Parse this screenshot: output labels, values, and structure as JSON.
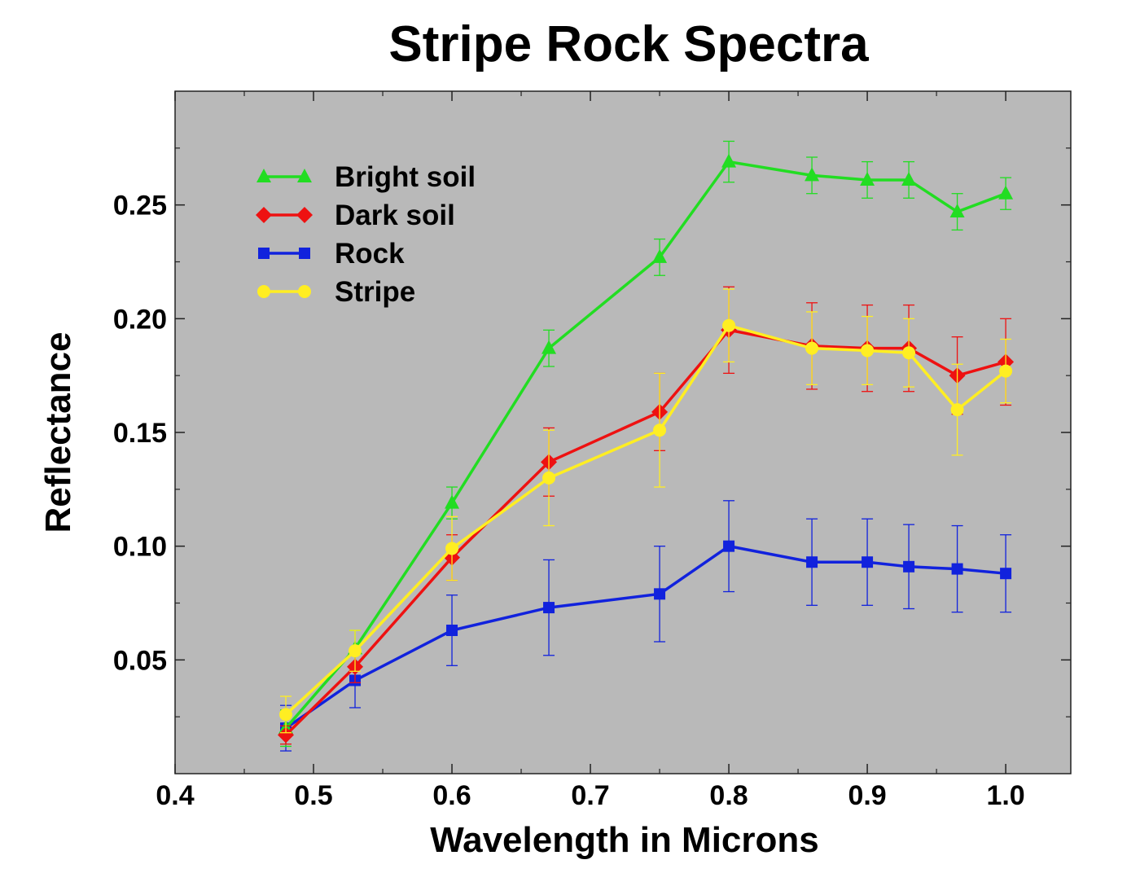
{
  "chart_data": {
    "type": "line",
    "title": "Stripe Rock Spectra",
    "xlabel": "Wavelength in Microns",
    "ylabel": "Reflectance",
    "xlim": [
      0.4,
      1.047
    ],
    "ylim": [
      0.0,
      0.3
    ],
    "xticks": [
      "0.4",
      "0.5",
      "0.6",
      "0.7",
      "0.8",
      "0.9",
      "1.0"
    ],
    "yticks": [
      "0.05",
      "0.10",
      "0.15",
      "0.20",
      "0.25"
    ],
    "grid": false,
    "legend_placement": "top-left",
    "background_color": "#b9b9b9",
    "x": [
      0.48,
      0.53,
      0.6,
      0.67,
      0.75,
      0.8,
      0.86,
      0.9,
      0.93,
      0.965,
      1.0
    ],
    "series": [
      {
        "name": "Bright soil",
        "color": "#22dd22",
        "marker": "triangle",
        "values": [
          0.02,
          0.055,
          0.119,
          0.187,
          0.227,
          0.269,
          0.263,
          0.261,
          0.261,
          0.247,
          0.255
        ],
        "errors": [
          0.008,
          0.008,
          0.007,
          0.008,
          0.008,
          0.009,
          0.008,
          0.008,
          0.008,
          0.008,
          0.007
        ]
      },
      {
        "name": "Dark soil",
        "color": "#ee1111",
        "marker": "diamond",
        "values": [
          0.017,
          0.047,
          0.095,
          0.137,
          0.159,
          0.195,
          0.188,
          0.187,
          0.187,
          0.175,
          0.181
        ],
        "errors": [
          0.004,
          0.007,
          0.01,
          0.015,
          0.017,
          0.019,
          0.019,
          0.019,
          0.019,
          0.017,
          0.019
        ]
      },
      {
        "name": "Rock",
        "color": "#1122dd",
        "marker": "square",
        "values": [
          0.02,
          0.041,
          0.063,
          0.073,
          0.079,
          0.1,
          0.093,
          0.093,
          0.091,
          0.09,
          0.088
        ],
        "errors": [
          0.01,
          0.012,
          0.0155,
          0.021,
          0.021,
          0.02,
          0.019,
          0.019,
          0.0185,
          0.019,
          0.017
        ]
      },
      {
        "name": "Stripe",
        "color": "#ffee22",
        "marker": "circle",
        "values": [
          0.026,
          0.054,
          0.099,
          0.13,
          0.151,
          0.197,
          0.187,
          0.186,
          0.185,
          0.16,
          0.177
        ],
        "errors": [
          0.008,
          0.009,
          0.014,
          0.021,
          0.025,
          0.016,
          0.016,
          0.015,
          0.015,
          0.02,
          0.014
        ]
      }
    ]
  }
}
